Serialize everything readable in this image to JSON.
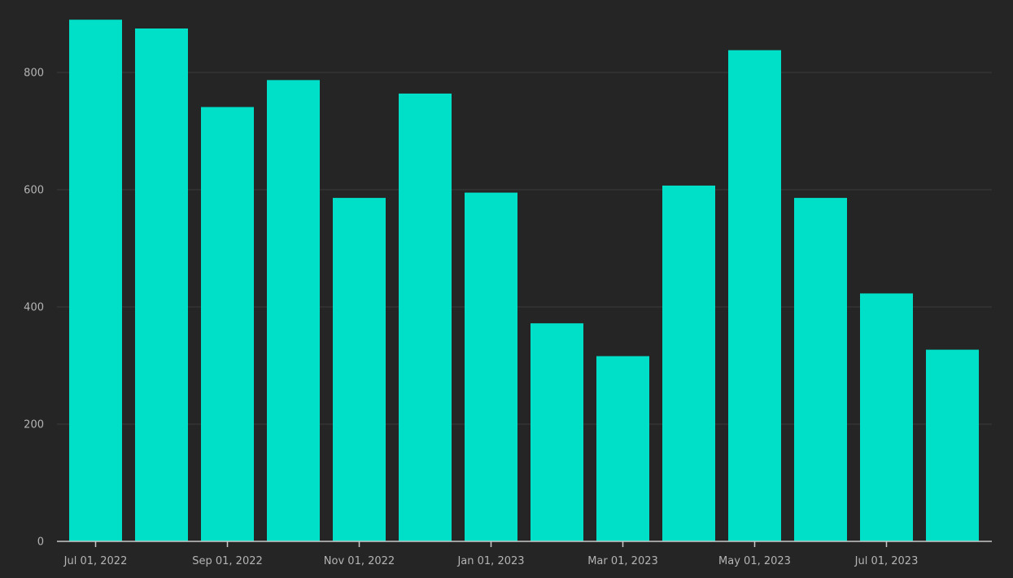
{
  "chart_data": {
    "type": "bar",
    "title": "",
    "xlabel": "",
    "ylabel": "",
    "categories": [
      "2022-07-01",
      "2022-08-01",
      "2022-09-01",
      "2022-10-01",
      "2022-11-01",
      "2022-12-01",
      "2023-01-01",
      "2023-02-01",
      "2023-03-01",
      "2023-04-01",
      "2023-05-01",
      "2023-06-01",
      "2023-07-01",
      "2023-08-01"
    ],
    "values": [
      890,
      875,
      741,
      787,
      586,
      764,
      595,
      372,
      316,
      607,
      838,
      586,
      423,
      327
    ],
    "x_tick_labels": [
      "Jul 01, 2022",
      "Sep 01, 2022",
      "Nov 01, 2022",
      "Jan 01, 2023",
      "Mar 01, 2023",
      "May 01, 2023",
      "Jul 01, 2023"
    ],
    "x_tick_categories": [
      "2022-07-01",
      "2022-09-01",
      "2022-11-01",
      "2023-01-01",
      "2023-03-01",
      "2023-05-01",
      "2023-07-01"
    ],
    "y_ticks": [
      0,
      200,
      400,
      600,
      800
    ],
    "y_tick_labels": [
      "0",
      "200",
      "400",
      "600",
      "800"
    ],
    "ylim": [
      0,
      900
    ],
    "grid": true,
    "legend": "none",
    "bar_color": "#00e0c8",
    "background": "#252525"
  }
}
